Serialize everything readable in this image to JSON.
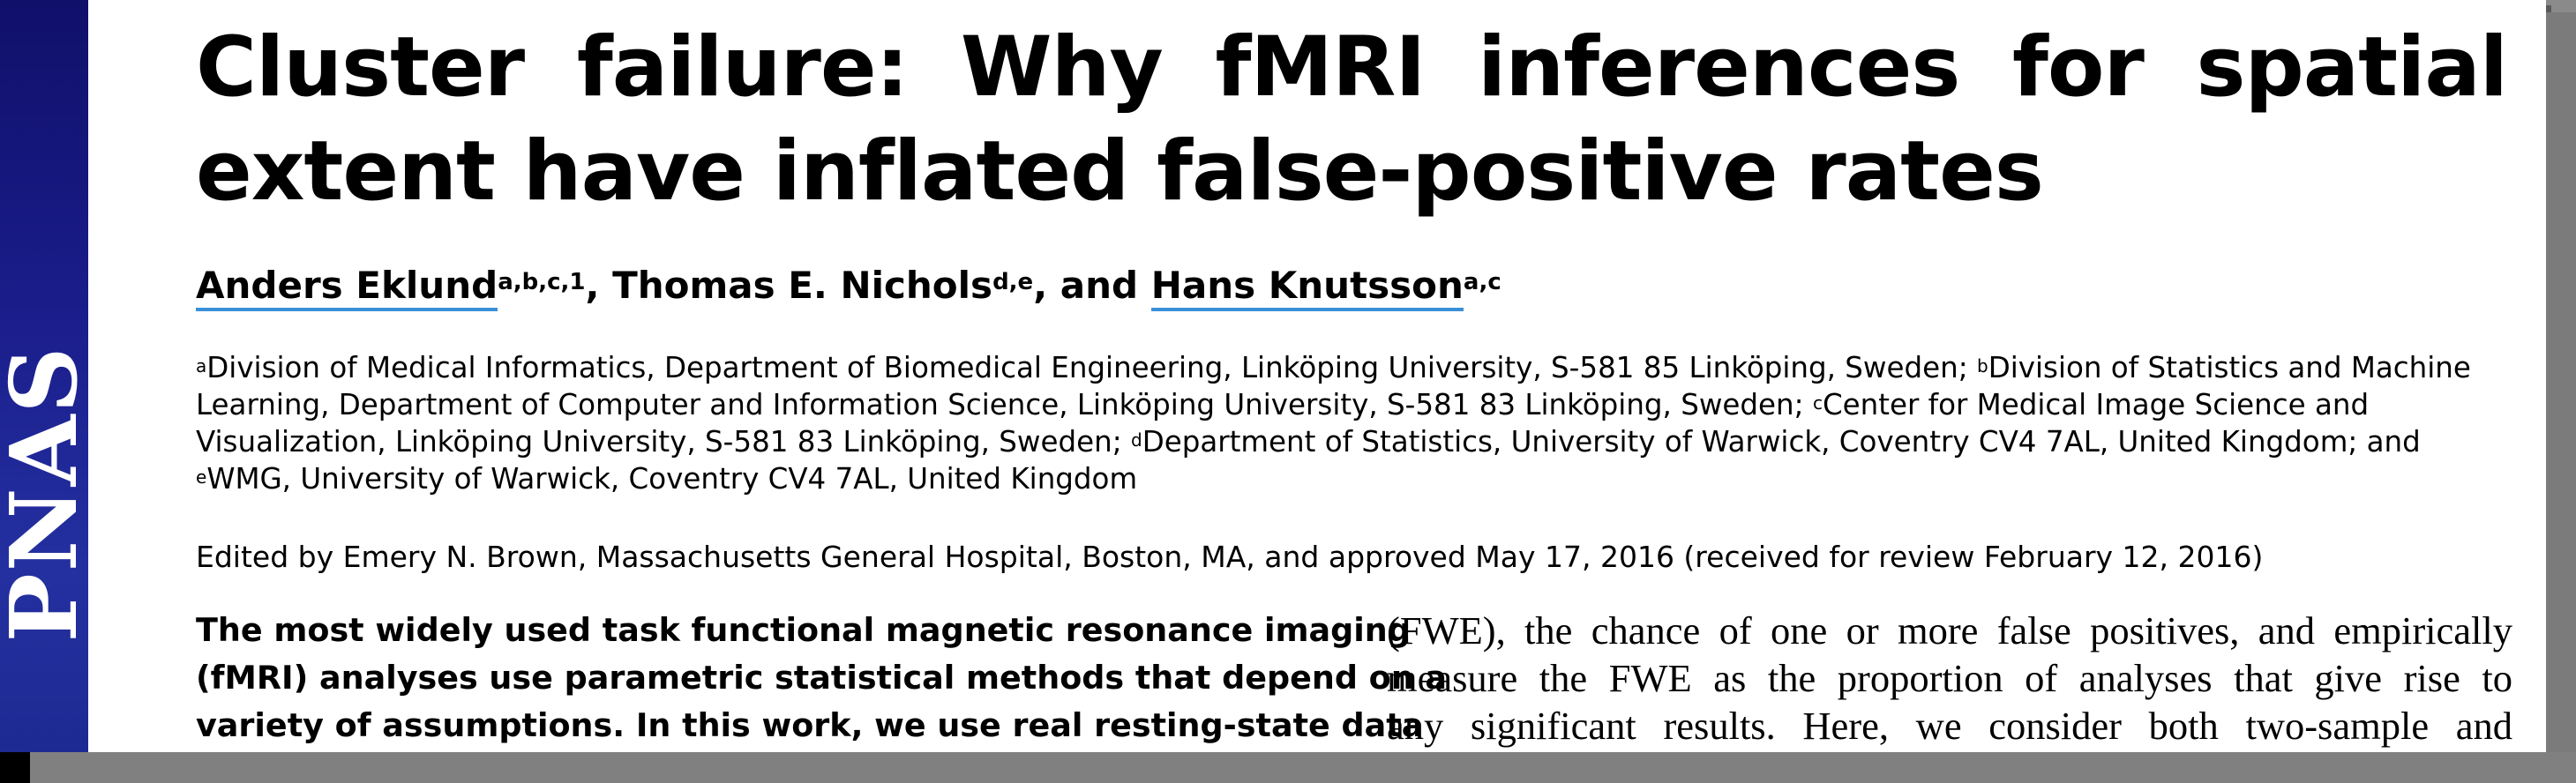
{
  "journal": {
    "logo": "PNAS"
  },
  "article": {
    "title": "Cluster failure: Why fMRI inferences for spatial extent have inflated false-positive rates",
    "authors": [
      {
        "name": "Anders Eklund",
        "sup": "a,b,c,1"
      },
      {
        "name": "Thomas E. Nichols",
        "sup": "d,e"
      },
      {
        "name": "Hans Knutsson",
        "sup": "a,c"
      }
    ],
    "authors_sep_1": ", ",
    "authors_sep_2": ", and ",
    "affiliations": [
      {
        "sup": "a",
        "text": "Division of Medical Informatics, Department of Biomedical Engineering, Linköping University, S-581 85 Linköping, Sweden; "
      },
      {
        "sup": "b",
        "text": "Division of Statistics and Machine Learning, Department of Computer and Information Science, Linköping University, S-581 83 Linköping, Sweden; "
      },
      {
        "sup": "c",
        "text": "Center for Medical Image Science and Visualization, Linköping University, S-581 83 Linköping, Sweden; "
      },
      {
        "sup": "d",
        "text": "Department of Statistics, University of Warwick, Coventry CV4 7AL, United Kingdom; and "
      },
      {
        "sup": "e",
        "text": "WMG, University of Warwick, Coventry CV4 7AL, United Kingdom"
      }
    ],
    "edited_by": "Edited by Emery N. Brown, Massachusetts General Hospital, Boston, MA, and approved May 17, 2016 (received for review February 12, 2016)",
    "abstract_lines": [
      "The most widely used task functional magnetic resonance imaging",
      "(fMRI) analyses use parametric statistical methods that depend on a",
      "variety of assumptions. In this work, we use real resting-state data"
    ],
    "body_lines": [
      "(FWE), the chance of one or more false positives, and empirically",
      "measure the FWE as the proportion of analyses that give rise to",
      "any significant results. Here, we consider both two-sample and"
    ]
  }
}
